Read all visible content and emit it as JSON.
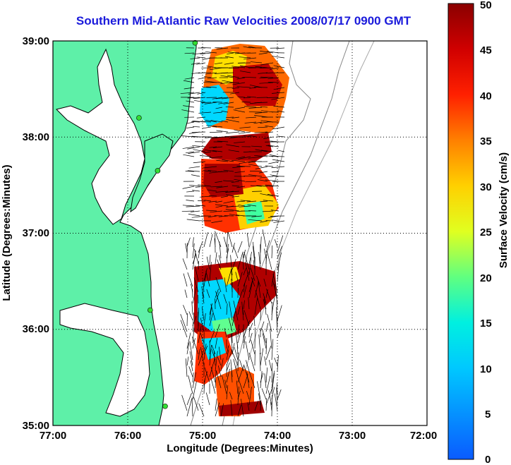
{
  "title": "Southern Mid-Atlantic Raw Velocities 2008/07/17 0900 GMT",
  "x_axis": {
    "label": "Longitude (Degrees:Minutes)",
    "ticks": [
      "77:00",
      "76:00",
      "75:00",
      "74:00",
      "73:00",
      "72:00"
    ]
  },
  "y_axis": {
    "label": "Latitude (Degrees:Minutes)",
    "ticks": [
      "39:00",
      "38:00",
      "37:00",
      "36:00",
      "35:00"
    ]
  },
  "colorbar": {
    "label": "Surface Velocity (cm/s)",
    "min": 0,
    "max": 50,
    "ticks": [
      "50",
      "45",
      "40",
      "35",
      "30",
      "25",
      "20",
      "15",
      "10",
      "5",
      "0"
    ]
  },
  "colors": {
    "land": "#5ef0a8",
    "title": "#1a1adb",
    "vectors": "#000000",
    "stations": "#33dd33"
  },
  "stations": [
    {
      "lon": -75.1,
      "lat": 38.98
    },
    {
      "lon": -75.85,
      "lat": 38.2
    },
    {
      "lon": -75.6,
      "lat": 37.65
    },
    {
      "lon": -75.7,
      "lat": 36.2
    },
    {
      "lon": -75.5,
      "lat": 35.2
    }
  ]
}
